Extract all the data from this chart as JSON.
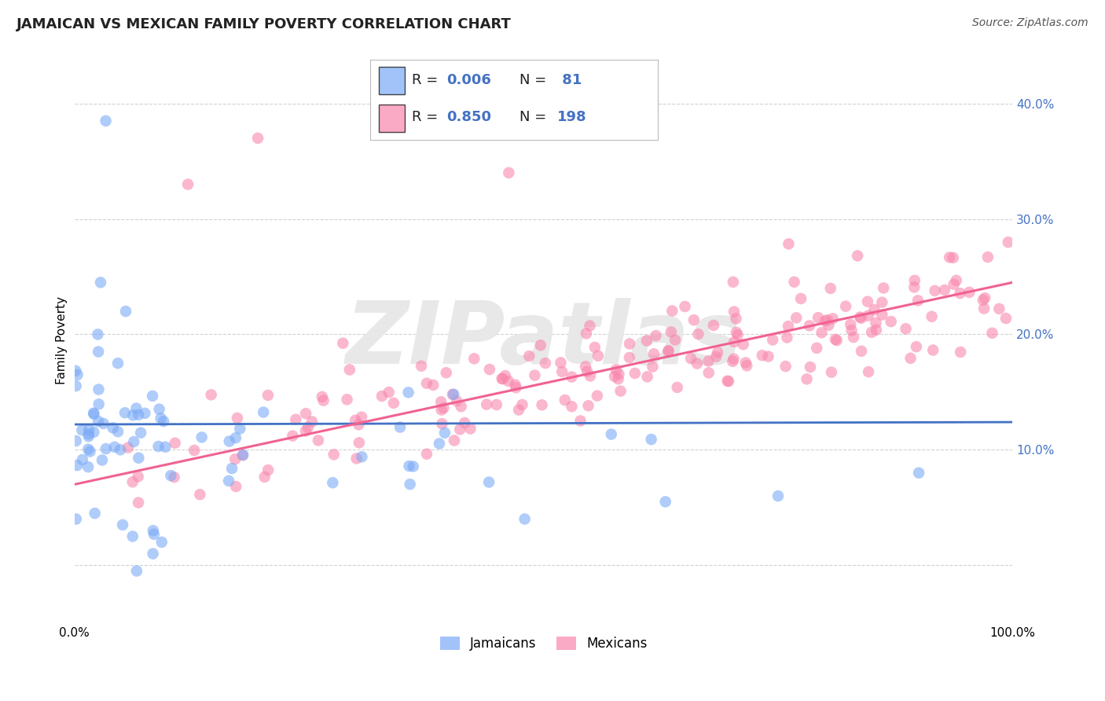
{
  "title": "JAMAICAN VS MEXICAN FAMILY POVERTY CORRELATION CHART",
  "source": "Source: ZipAtlas.com",
  "ylabel": "Family Poverty",
  "ytick_positions": [
    0.0,
    0.1,
    0.2,
    0.3,
    0.4
  ],
  "ytick_labels": [
    "",
    "10.0%",
    "20.0%",
    "30.0%",
    "40.0%"
  ],
  "xtick_positions": [
    0.0,
    0.25,
    0.5,
    0.75,
    1.0
  ],
  "xtick_labels": [
    "0.0%",
    "",
    "",
    "",
    "100.0%"
  ],
  "xlim": [
    0.0,
    1.0
  ],
  "ylim": [
    -0.05,
    0.44
  ],
  "jamaican_R": 0.006,
  "jamaican_N": 81,
  "mexican_R": 0.85,
  "mexican_N": 198,
  "blue_scatter": "#7BAAF7",
  "pink_scatter": "#F987AC",
  "blue_line_color": "#4472C4",
  "pink_line_color": "#F06292",
  "blue_dashed_color": "#A8C8F8",
  "background_color": "#FFFFFF",
  "watermark_color": "#E8E8E8",
  "grid_color": "#CCCCCC",
  "title_fontsize": 13,
  "source_fontsize": 10,
  "axis_label_fontsize": 11,
  "tick_fontsize": 11,
  "legend_fontsize": 13,
  "jam_line_y0": 0.122,
  "jam_line_slope": 0.002,
  "mex_line_y0": 0.07,
  "mex_line_slope": 0.175
}
